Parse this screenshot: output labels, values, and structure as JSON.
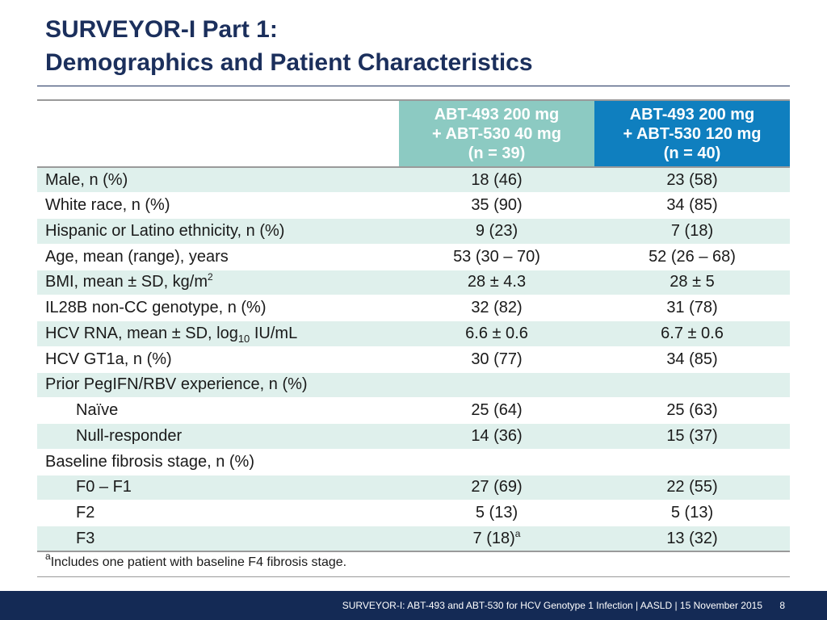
{
  "slide": {
    "title_line1": "SURVEYOR-I Part 1:",
    "title_line2": "Demographics and Patient Characteristics"
  },
  "table": {
    "columns": [
      {
        "line1": "ABT-493 200 mg",
        "line2": "+ ABT-530 40 mg",
        "line3": "(n = 39)"
      },
      {
        "line1": "ABT-493 200 mg",
        "line2": "+ ABT-530 120 mg",
        "line3": "(n = 40)"
      }
    ],
    "rows": [
      {
        "label": "Male, n (%)",
        "v1": "18 (46)",
        "v2": "23 (58)"
      },
      {
        "label": "White race, n (%)",
        "v1": "35 (90)",
        "v2": "34 (85)"
      },
      {
        "label": "Hispanic or Latino ethnicity, n (%)",
        "v1": "9 (23)",
        "v2": "7 (18)"
      },
      {
        "label": "Age, mean (range), years",
        "v1": "53 (30 – 70)",
        "v2": "52 (26 – 68)"
      },
      {
        "label": "BMI, mean ± SD, kg/m",
        "label_sup": "2",
        "v1": "28 ± 4.3",
        "v2": "28 ± 5"
      },
      {
        "label": "IL28B non-CC genotype, n (%)",
        "v1": "32 (82)",
        "v2": "31 (78)"
      },
      {
        "label": "HCV RNA, mean ± SD, log",
        "label_sub": "10",
        "label_suffix": " IU/mL",
        "v1": "6.6 ± 0.6",
        "v2": "6.7 ± 0.6"
      },
      {
        "label": "HCV GT1a, n (%)",
        "v1": "30 (77)",
        "v2": "34 (85)"
      },
      {
        "label": "Prior PegIFN/RBV experience, n (%)",
        "v1": "",
        "v2": ""
      },
      {
        "label": "Naïve",
        "v1": "25 (64)",
        "v2": "25 (63)"
      },
      {
        "label": "Null-responder",
        "v1": "14 (36)",
        "v2": "15 (37)"
      },
      {
        "label": "Baseline fibrosis stage, n (%)",
        "v1": "",
        "v2": ""
      },
      {
        "label": "F0 – F1",
        "v1": "27 (69)",
        "v2": "22 (55)"
      },
      {
        "label": "F2",
        "v1": "5 (13)",
        "v2": "5 (13)"
      },
      {
        "label": "F3",
        "v1": "7 (18)",
        "v1_sup": "a",
        "v2": "13 (32)"
      }
    ]
  },
  "footnote": {
    "marker": "a",
    "text": "Includes one patient with baseline F4 fibrosis stage."
  },
  "footer": {
    "text": "SURVEYOR-I: ABT-493 and ABT-530 for HCV Genotype 1 Infection   | AASLD | 15 November 2015",
    "page": "8"
  },
  "colors": {
    "title": "#1b2f5c",
    "header_col1": "#8ccac2",
    "header_col2": "#0f7fbf",
    "row_shade": "#dff0ec",
    "footer_bg": "#142a55"
  }
}
